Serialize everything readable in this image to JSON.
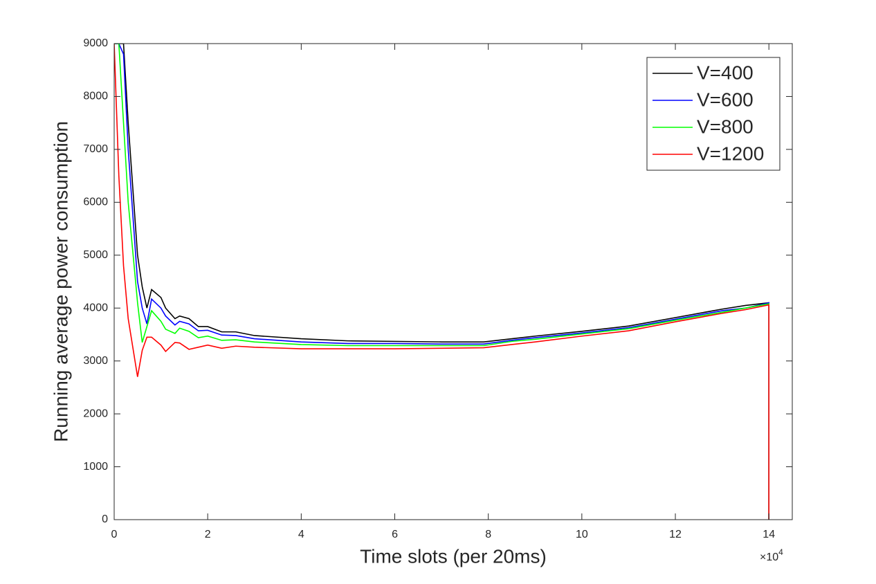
{
  "chart_data": {
    "type": "line",
    "xlabel": "Time slots (per 20ms)",
    "ylabel": "Running average power consumption",
    "x_exponent": {
      "base": "×10",
      "power": "4"
    },
    "x": [
      0,
      0.1,
      0.2,
      0.3,
      0.5,
      0.6,
      0.7,
      0.8,
      1.0,
      1.1,
      1.3,
      1.4,
      1.6,
      1.8,
      2.0,
      2.3,
      2.6,
      3,
      4,
      5,
      6,
      7,
      7.9,
      8.5,
      9,
      10,
      11,
      12,
      13,
      13.5,
      14,
      14
    ],
    "series": [
      {
        "name": "V=400",
        "color": "#000000",
        "values": [
          9000,
          9000,
          9000,
          7500,
          5000,
          4400,
          4000,
          4350,
          4200,
          4000,
          3800,
          3850,
          3800,
          3650,
          3650,
          3550,
          3550,
          3480,
          3420,
          3380,
          3370,
          3360,
          3360,
          3420,
          3470,
          3560,
          3660,
          3820,
          3980,
          4050,
          4100,
          0
        ]
      },
      {
        "name": "V=600",
        "color": "#0000ff",
        "values": [
          9000,
          9000,
          8800,
          7000,
          4500,
          4000,
          3700,
          4170,
          4000,
          3850,
          3680,
          3750,
          3700,
          3570,
          3580,
          3490,
          3480,
          3420,
          3360,
          3330,
          3330,
          3320,
          3320,
          3390,
          3440,
          3530,
          3630,
          3790,
          3950,
          4000,
          4100,
          0
        ]
      },
      {
        "name": "V=800",
        "color": "#00ff00",
        "values": [
          9000,
          9000,
          7500,
          6000,
          4100,
          3350,
          3650,
          3950,
          3750,
          3600,
          3520,
          3620,
          3560,
          3440,
          3470,
          3390,
          3400,
          3360,
          3310,
          3290,
          3290,
          3290,
          3290,
          3370,
          3410,
          3510,
          3610,
          3770,
          3920,
          4000,
          4080,
          0
        ]
      },
      {
        "name": "V=1200",
        "color": "#ff0000",
        "values": [
          9000,
          6500,
          4800,
          3800,
          2700,
          3200,
          3450,
          3450,
          3300,
          3180,
          3350,
          3340,
          3220,
          3260,
          3300,
          3240,
          3280,
          3260,
          3230,
          3230,
          3230,
          3240,
          3250,
          3310,
          3360,
          3470,
          3570,
          3740,
          3900,
          3970,
          4060,
          0
        ]
      }
    ],
    "xlim": [
      0,
      14.5
    ],
    "xticks": [
      0,
      2,
      4,
      6,
      8,
      10,
      12,
      14
    ],
    "ylim": [
      0,
      9000
    ],
    "yticks": [
      0,
      1000,
      2000,
      3000,
      4000,
      5000,
      6000,
      7000,
      8000,
      9000
    ],
    "legend": "upper right",
    "grid": false
  }
}
